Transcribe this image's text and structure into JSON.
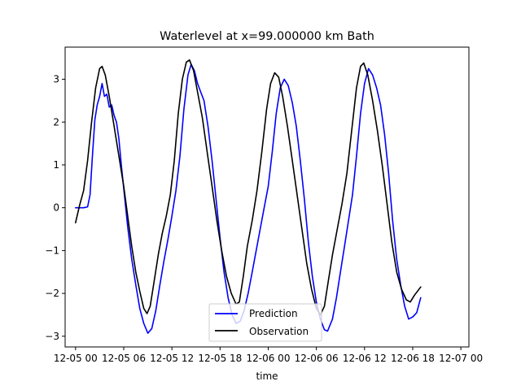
{
  "chart_data": {
    "type": "line",
    "title": "Waterlevel at x=99.000000 km Bath",
    "xlabel": "time",
    "ylabel": "",
    "x_unit": "hours from 2021-12-05 00:00",
    "xlim": [
      -1.3,
      49.0
    ],
    "ylim": [
      -3.25,
      3.75
    ],
    "xticks": [
      {
        "value": 0,
        "label": "12-05 00"
      },
      {
        "value": 6,
        "label": "12-05 06"
      },
      {
        "value": 12,
        "label": "12-05 12"
      },
      {
        "value": 18,
        "label": "12-05 18"
      },
      {
        "value": 24,
        "label": "12-06 00"
      },
      {
        "value": 30,
        "label": "12-06 06"
      },
      {
        "value": 36,
        "label": "12-06 12"
      },
      {
        "value": 42,
        "label": "12-06 18"
      },
      {
        "value": 48,
        "label": "12-07 00"
      }
    ],
    "yticks": [
      {
        "value": -3,
        "label": "−3"
      },
      {
        "value": -2,
        "label": "−2"
      },
      {
        "value": -1,
        "label": "−1"
      },
      {
        "value": 0,
        "label": "0"
      },
      {
        "value": 1,
        "label": "1"
      },
      {
        "value": 2,
        "label": "2"
      },
      {
        "value": 3,
        "label": "3"
      }
    ],
    "grid": false,
    "legend_position": "lower center",
    "series": [
      {
        "name": "Prediction",
        "color": "#0000ff",
        "points": [
          [
            0,
            0
          ],
          [
            0.5,
            0
          ],
          [
            1,
            0
          ],
          [
            1.5,
            0.02
          ],
          [
            1.8,
            0.3
          ],
          [
            2.1,
            1.2
          ],
          [
            2.4,
            2.05
          ],
          [
            2.7,
            2.4
          ],
          [
            3.0,
            2.6
          ],
          [
            3.3,
            2.9
          ],
          [
            3.6,
            2.6
          ],
          [
            3.9,
            2.65
          ],
          [
            4.2,
            2.35
          ],
          [
            4.5,
            2.4
          ],
          [
            4.8,
            2.15
          ],
          [
            5.1,
            2.0
          ],
          [
            5.4,
            1.6
          ],
          [
            5.7,
            1.0
          ],
          [
            6.0,
            0.45
          ],
          [
            6.5,
            -0.45
          ],
          [
            7.0,
            -1.2
          ],
          [
            7.5,
            -1.8
          ],
          [
            8.0,
            -2.35
          ],
          [
            8.5,
            -2.7
          ],
          [
            9.0,
            -2.93
          ],
          [
            9.5,
            -2.82
          ],
          [
            10.0,
            -2.4
          ],
          [
            10.5,
            -1.8
          ],
          [
            11.0,
            -1.25
          ],
          [
            11.5,
            -0.75
          ],
          [
            12.0,
            -0.2
          ],
          [
            12.5,
            0.4
          ],
          [
            13.0,
            1.2
          ],
          [
            13.5,
            2.3
          ],
          [
            14.0,
            3.1
          ],
          [
            14.4,
            3.35
          ],
          [
            14.8,
            3.2
          ],
          [
            15.2,
            2.9
          ],
          [
            15.6,
            2.7
          ],
          [
            16.0,
            2.5
          ],
          [
            16.5,
            1.9
          ],
          [
            17.0,
            1.1
          ],
          [
            17.5,
            0.2
          ],
          [
            18.0,
            -0.7
          ],
          [
            18.5,
            -1.5
          ],
          [
            19.0,
            -2.1
          ],
          [
            19.5,
            -2.5
          ],
          [
            20.0,
            -2.7
          ],
          [
            20.5,
            -2.65
          ],
          [
            21.0,
            -2.4
          ],
          [
            21.5,
            -2.0
          ],
          [
            22.0,
            -1.5
          ],
          [
            22.5,
            -1.0
          ],
          [
            23.0,
            -0.5
          ],
          [
            23.5,
            0
          ],
          [
            24.0,
            0.5
          ],
          [
            24.5,
            1.3
          ],
          [
            25.0,
            2.2
          ],
          [
            25.5,
            2.8
          ],
          [
            26.0,
            3.0
          ],
          [
            26.5,
            2.85
          ],
          [
            27.0,
            2.45
          ],
          [
            27.5,
            1.9
          ],
          [
            28.0,
            1.1
          ],
          [
            28.5,
            0.2
          ],
          [
            29.0,
            -0.8
          ],
          [
            29.5,
            -1.6
          ],
          [
            30.0,
            -2.2
          ],
          [
            30.5,
            -2.6
          ],
          [
            31.0,
            -2.85
          ],
          [
            31.4,
            -2.88
          ],
          [
            32.0,
            -2.6
          ],
          [
            32.5,
            -2.1
          ],
          [
            33.0,
            -1.5
          ],
          [
            33.5,
            -0.9
          ],
          [
            34.0,
            -0.3
          ],
          [
            34.5,
            0.3
          ],
          [
            35.0,
            1.2
          ],
          [
            35.5,
            2.2
          ],
          [
            36.0,
            2.9
          ],
          [
            36.5,
            3.25
          ],
          [
            37.0,
            3.1
          ],
          [
            37.5,
            2.8
          ],
          [
            38.0,
            2.4
          ],
          [
            38.5,
            1.7
          ],
          [
            39.0,
            0.8
          ],
          [
            39.5,
            -0.3
          ],
          [
            40.0,
            -1.2
          ],
          [
            40.5,
            -1.8
          ],
          [
            41.0,
            -2.3
          ],
          [
            41.5,
            -2.6
          ],
          [
            42.0,
            -2.55
          ],
          [
            42.5,
            -2.45
          ],
          [
            43.0,
            -2.1
          ]
        ]
      },
      {
        "name": "Observation",
        "color": "#000000",
        "points": [
          [
            0,
            -0.35
          ],
          [
            0.5,
            0.05
          ],
          [
            1.0,
            0.4
          ],
          [
            1.5,
            1.1
          ],
          [
            2.0,
            2.0
          ],
          [
            2.5,
            2.8
          ],
          [
            3.0,
            3.25
          ],
          [
            3.3,
            3.3
          ],
          [
            3.7,
            3.1
          ],
          [
            4.2,
            2.6
          ],
          [
            4.8,
            1.9
          ],
          [
            5.4,
            1.2
          ],
          [
            6.0,
            0.5
          ],
          [
            6.5,
            -0.2
          ],
          [
            7.0,
            -0.9
          ],
          [
            7.5,
            -1.5
          ],
          [
            8.0,
            -1.95
          ],
          [
            8.5,
            -2.35
          ],
          [
            8.9,
            -2.47
          ],
          [
            9.3,
            -2.3
          ],
          [
            9.8,
            -1.7
          ],
          [
            10.3,
            -1.1
          ],
          [
            10.8,
            -0.6
          ],
          [
            11.3,
            -0.2
          ],
          [
            11.8,
            0.3
          ],
          [
            12.3,
            1.1
          ],
          [
            12.8,
            2.2
          ],
          [
            13.3,
            3.0
          ],
          [
            13.8,
            3.4
          ],
          [
            14.2,
            3.45
          ],
          [
            14.7,
            3.2
          ],
          [
            15.2,
            2.7
          ],
          [
            15.8,
            2.1
          ],
          [
            16.4,
            1.3
          ],
          [
            17.0,
            0.5
          ],
          [
            17.6,
            -0.3
          ],
          [
            18.2,
            -1.0
          ],
          [
            18.8,
            -1.6
          ],
          [
            19.4,
            -2.0
          ],
          [
            20.0,
            -2.25
          ],
          [
            20.4,
            -2.2
          ],
          [
            20.9,
            -1.6
          ],
          [
            21.4,
            -0.9
          ],
          [
            22.0,
            -0.3
          ],
          [
            22.6,
            0.4
          ],
          [
            23.2,
            1.3
          ],
          [
            23.8,
            2.3
          ],
          [
            24.3,
            2.9
          ],
          [
            24.8,
            3.15
          ],
          [
            25.3,
            3.05
          ],
          [
            25.8,
            2.6
          ],
          [
            26.4,
            1.9
          ],
          [
            27.0,
            1.1
          ],
          [
            27.6,
            0.3
          ],
          [
            28.2,
            -0.5
          ],
          [
            28.8,
            -1.3
          ],
          [
            29.4,
            -1.9
          ],
          [
            30.0,
            -2.35
          ],
          [
            30.5,
            -2.5
          ],
          [
            31.0,
            -2.3
          ],
          [
            31.5,
            -1.7
          ],
          [
            32.0,
            -1.1
          ],
          [
            32.6,
            -0.5
          ],
          [
            33.2,
            0.1
          ],
          [
            33.8,
            0.8
          ],
          [
            34.4,
            1.8
          ],
          [
            35.0,
            2.8
          ],
          [
            35.5,
            3.3
          ],
          [
            35.9,
            3.38
          ],
          [
            36.4,
            3.1
          ],
          [
            37.0,
            2.5
          ],
          [
            37.6,
            1.8
          ],
          [
            38.2,
            1.0
          ],
          [
            38.8,
            0.1
          ],
          [
            39.4,
            -0.8
          ],
          [
            40.0,
            -1.5
          ],
          [
            40.6,
            -1.9
          ],
          [
            41.2,
            -2.15
          ],
          [
            41.7,
            -2.2
          ],
          [
            42.2,
            -2.05
          ],
          [
            43.0,
            -1.85
          ]
        ]
      }
    ]
  }
}
